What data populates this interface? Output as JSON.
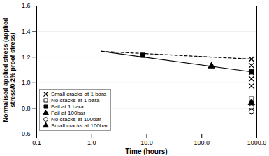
{
  "chart_data": {
    "type": "scatter",
    "xlabel": "Time (hours)",
    "ylabel": "Normalised applied stress (applied\nstress/0.2% proof stress)",
    "log": "x",
    "grid": "y",
    "legend": "lower left",
    "xlim": [
      0.1,
      1000.0
    ],
    "ylim": [
      0.6,
      1.6
    ],
    "xticks": [
      0.1,
      {
        "value": 1.0,
        "label": "1.0"
      },
      {
        "value": 10.0,
        "label": "10.0"
      },
      {
        "value": 100.0,
        "label": "100.0"
      },
      {
        "value": 1000.0,
        "label": "1000.0"
      }
    ],
    "yticks": [
      0.6,
      0.8,
      {
        "value": 1.0,
        "label": "1.0"
      },
      1.2,
      1.4,
      1.6
    ],
    "series": [
      {
        "type": "line",
        "line_style": "dashed",
        "color": "black",
        "x": [
          1.5,
          800.0
        ],
        "values": [
          1.245,
          1.185
        ]
      },
      {
        "type": "line",
        "line_style": "solid",
        "color": "black",
        "x": [
          1.5,
          800.0
        ],
        "values": [
          1.245,
          1.085
        ]
      },
      {
        "name": "Small cracks at 1 bara",
        "type": "scatter",
        "marker": "x",
        "color": "black",
        "x": [
          800,
          800,
          800,
          800,
          800
        ],
        "values": [
          1.185,
          1.135,
          1.08,
          1.03,
          0.975
        ]
      },
      {
        "name": "No cracks at 1 bara",
        "type": "scatter",
        "marker": "square-open",
        "color": "black",
        "x": [
          800
        ],
        "values": [
          0.875
        ]
      },
      {
        "name": "Fail at 1 bara",
        "type": "scatter",
        "marker": "square",
        "color": "black",
        "x": [
          8.5,
          800
        ],
        "values": [
          1.215,
          1.085
        ]
      },
      {
        "name": "Fail at 100bar",
        "type": "scatter",
        "marker": "triangle",
        "color": "black",
        "x": [
          150
        ],
        "values": [
          1.13
        ]
      },
      {
        "name": "No cracks at 100bar",
        "type": "scatter",
        "marker": "circle-open",
        "color": "black",
        "x": [
          800,
          800
        ],
        "values": [
          0.81,
          0.775
        ]
      },
      {
        "name": "Small cracks at 100bar",
        "type": "scatter",
        "marker": "triangle",
        "color": "black",
        "x": [
          800
        ],
        "values": [
          0.845
        ]
      }
    ]
  }
}
